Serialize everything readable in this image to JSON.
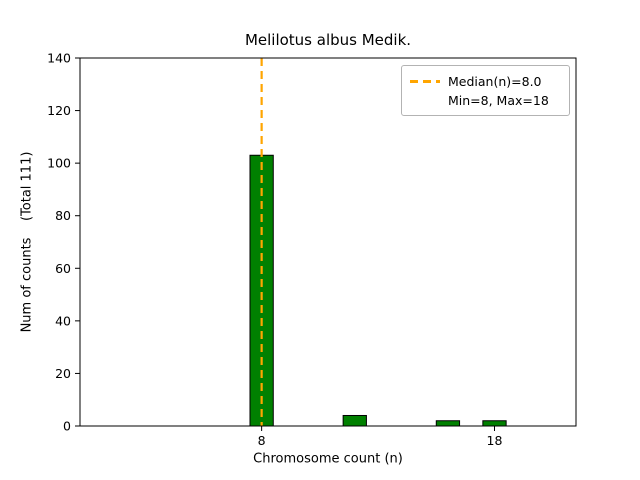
{
  "figure": {
    "title": "Melilotus albus Medik.",
    "xlabel": "Chromosome count (n)",
    "ylabel": "Num of counts    (Total 111)"
  },
  "legend": {
    "entries": [
      {
        "label": "Median(n)=8.0",
        "swatch": "dashed-orange-line"
      },
      {
        "label": "Min=8, Max=18",
        "swatch": "none"
      }
    ]
  },
  "colors": {
    "bar_fill": "#008000",
    "bar_edge": "#000000",
    "median_line": "#ffa500",
    "axis": "#000000",
    "background": "#ffffff"
  },
  "chart_data": {
    "type": "bar",
    "title": "Melilotus albus Medik.",
    "xlabel": "Chromosome count (n)",
    "ylabel": "Num of counts    (Total 111)",
    "categories": [
      8,
      12,
      16,
      18
    ],
    "values": [
      103,
      4,
      2,
      2
    ],
    "total": 111,
    "median": 8.0,
    "min": 8,
    "max": 18,
    "bar_width": 1.0,
    "xlim": [
      0.2,
      21.5
    ],
    "ylim": [
      0,
      140
    ],
    "xticks": [
      8,
      18
    ],
    "yticks": [
      0,
      20,
      40,
      60,
      80,
      100,
      120,
      140
    ],
    "grid": false,
    "legend_position": "upper right"
  }
}
